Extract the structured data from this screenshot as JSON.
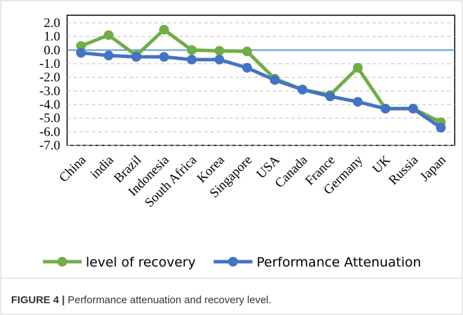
{
  "chart_data": {
    "type": "line",
    "categories": [
      "China",
      "india",
      "Brazil",
      "Indonesia",
      "South Africa",
      "Korea",
      "Singapore",
      "USA",
      "Canada",
      "France",
      "Germany",
      "UK",
      "Russia",
      "Japan"
    ],
    "series": [
      {
        "name": "level of recovery",
        "color": "#70ad47",
        "values": [
          0.3,
          1.1,
          -0.4,
          1.5,
          0.0,
          -0.05,
          -0.1,
          -2.1,
          -2.9,
          -3.3,
          -1.3,
          -4.3,
          -4.3,
          -5.3
        ]
      },
      {
        "name": "Performance Attenuation",
        "color": "#4472c4",
        "values": [
          -0.2,
          -0.4,
          -0.5,
          -0.5,
          -0.7,
          -0.7,
          -1.3,
          -2.2,
          -2.9,
          -3.4,
          -3.8,
          -4.3,
          -4.3,
          -5.7
        ]
      }
    ],
    "ylim": [
      -7,
      2
    ],
    "yticks": [
      {
        "value": 2,
        "label": "2.0"
      },
      {
        "value": 1,
        "label": "1.0"
      },
      {
        "value": 0,
        "label": "0.0"
      },
      {
        "value": -1,
        "label": "-1.0"
      },
      {
        "value": -2,
        "label": "-2.0"
      },
      {
        "value": -3,
        "label": "-3.0"
      },
      {
        "value": -4,
        "label": "-4.0"
      },
      {
        "value": -5,
        "label": "-5.0"
      },
      {
        "value": -6,
        "label": "-6.0"
      },
      {
        "value": -7,
        "label": "-7.0"
      }
    ],
    "grid": true,
    "legend": "bottom"
  },
  "caption": {
    "label": "FIGURE 4 |",
    "text": "Performance attenuation and recovery level."
  }
}
